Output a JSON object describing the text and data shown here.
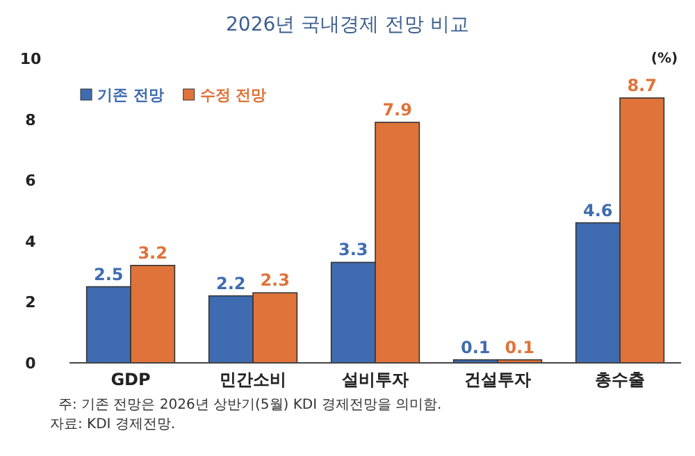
{
  "chart_data": {
    "type": "bar",
    "title": "2026년 국내경제 전망 비교",
    "ylabel": "(%)",
    "categories": [
      "GDP",
      "민간소비",
      "설비투자",
      "건설투자",
      "총수출"
    ],
    "series": [
      {
        "name": "기존 전망",
        "color": "#3f6cb0",
        "values": [
          2.5,
          2.2,
          3.3,
          0.1,
          4.6
        ]
      },
      {
        "name": "수정 전망",
        "color": "#e0733a",
        "values": [
          3.2,
          2.3,
          7.9,
          0.1,
          8.7
        ]
      }
    ],
    "ylim": [
      0,
      10
    ],
    "yticks": [
      0,
      2,
      4,
      6,
      8,
      10
    ],
    "data_labels": true,
    "grid": false,
    "legend": "top left",
    "annotations": [
      "주: 기존 전망은 2026년 상반기(5월) KDI 경제전망을 의미함.",
      "자료: KDI 경제전망."
    ]
  }
}
